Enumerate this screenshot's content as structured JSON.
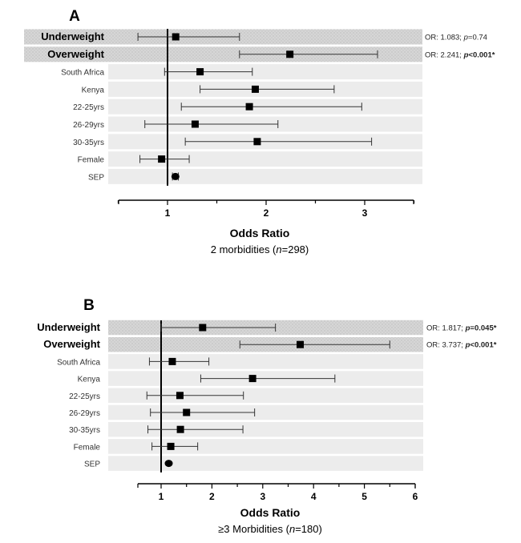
{
  "chart_data": [
    {
      "type": "forest",
      "panel": "A",
      "xlabel": "Odds Ratio",
      "subtitle": {
        "pre": "2 morbidities (",
        "n_symbol": "n",
        "post": "=298)"
      },
      "xlim": [
        0.5,
        3.5
      ],
      "ticks": [
        1,
        2,
        3
      ],
      "reference_line": 1,
      "rows": [
        {
          "label": "Underweight",
          "bold": true,
          "highlight": true,
          "or": 1.083,
          "lo": 0.7,
          "hi": 1.73
        },
        {
          "label": "Overweight",
          "bold": true,
          "highlight": true,
          "or": 2.241,
          "lo": 1.73,
          "hi": 3.13
        },
        {
          "label": "South Africa",
          "or": 1.33,
          "lo": 0.97,
          "hi": 1.86
        },
        {
          "label": "Kenya",
          "or": 1.89,
          "lo": 1.33,
          "hi": 2.69
        },
        {
          "label": "22-25yrs",
          "or": 1.83,
          "lo": 1.14,
          "hi": 2.97
        },
        {
          "label": "26-29yrs",
          "or": 1.28,
          "lo": 0.77,
          "hi": 2.12
        },
        {
          "label": "30-35yrs",
          "or": 1.91,
          "lo": 1.18,
          "hi": 3.07
        },
        {
          "label": "Female",
          "or": 0.94,
          "lo": 0.72,
          "hi": 1.22
        },
        {
          "label": "SEP",
          "or": 1.08,
          "lo": 1.05,
          "hi": 1.11
        }
      ],
      "annotations": [
        {
          "row": 0,
          "prefix": "OR: 1.083;  ",
          "p_label": "p",
          "p_value": "=0.74",
          "significant": false
        },
        {
          "row": 1,
          "prefix": "OR: 2.241;  ",
          "p_label": "p",
          "p_value": "<0.001*",
          "significant": true
        }
      ]
    },
    {
      "type": "forest",
      "panel": "B",
      "xlabel": "Odds Ratio",
      "subtitle": {
        "pre": "≥3 Morbidities (",
        "n_symbol": "n",
        "post": "=180)"
      },
      "xlim": [
        0.5,
        6
      ],
      "ticks": [
        1,
        2,
        3,
        4,
        5,
        6
      ],
      "reference_line": 1,
      "rows": [
        {
          "label": "Underweight",
          "bold": true,
          "highlight": true,
          "or": 1.817,
          "lo": 1.0,
          "hi": 3.25
        },
        {
          "label": "Overweight",
          "bold": true,
          "highlight": true,
          "or": 3.737,
          "lo": 2.55,
          "hi": 5.5
        },
        {
          "label": "South Africa",
          "or": 1.22,
          "lo": 0.77,
          "hi": 1.94
        },
        {
          "label": "Kenya",
          "or": 2.8,
          "lo": 1.78,
          "hi": 4.42
        },
        {
          "label": "22-25yrs",
          "or": 1.37,
          "lo": 0.72,
          "hi": 2.62
        },
        {
          "label": "26-29yrs",
          "or": 1.5,
          "lo": 0.79,
          "hi": 2.84
        },
        {
          "label": "30-35yrs",
          "or": 1.38,
          "lo": 0.74,
          "hi": 2.61
        },
        {
          "label": "Female",
          "or": 1.19,
          "lo": 0.82,
          "hi": 1.72
        },
        {
          "label": "SEP",
          "or": 1.15,
          "lo": 1.11,
          "hi": 1.19
        }
      ],
      "annotations": [
        {
          "row": 0,
          "prefix": "OR: 1.817;  ",
          "p_label": "p",
          "p_value": "=0.045*",
          "significant": true
        },
        {
          "row": 1,
          "prefix": "OR: 3.737;  ",
          "p_label": "p",
          "p_value": "<0.001*",
          "significant": true
        }
      ]
    }
  ]
}
